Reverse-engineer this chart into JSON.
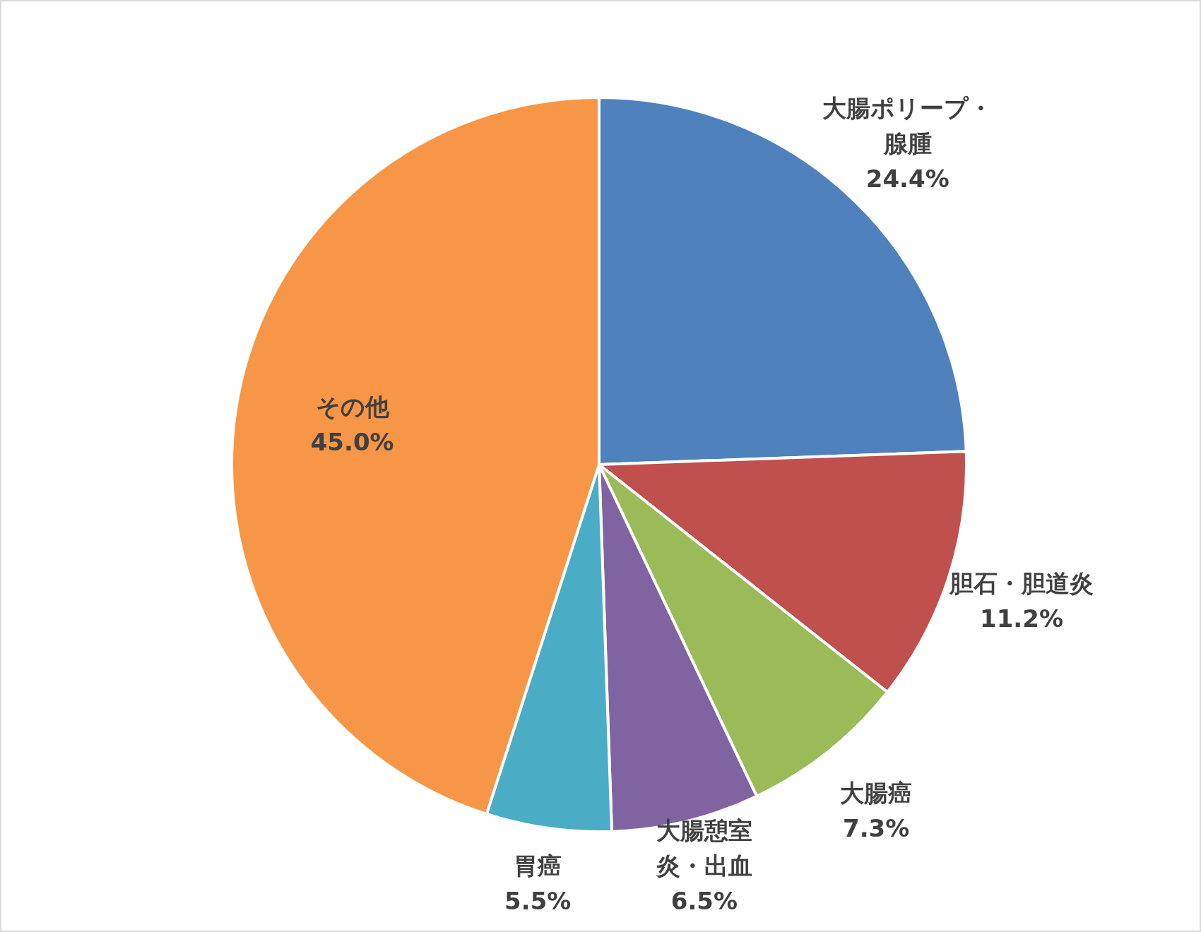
{
  "chart_data": {
    "type": "pie",
    "categories": [
      "大腸ポリープ・腺腫",
      "胆石・胆道炎",
      "大腸癌",
      "大腸憩室炎・出血",
      "胃癌",
      "その他"
    ],
    "values": [
      24.4,
      11.2,
      7.3,
      6.5,
      5.5,
      45.0
    ],
    "colors": [
      "#4f81bd",
      "#c0504d",
      "#9bbb59",
      "#8064a2",
      "#4bacc6",
      "#f79646"
    ],
    "value_labels": [
      "24.4%",
      "11.2%",
      "7.3%",
      "6.5%",
      "5.5%",
      "45.0%"
    ]
  }
}
